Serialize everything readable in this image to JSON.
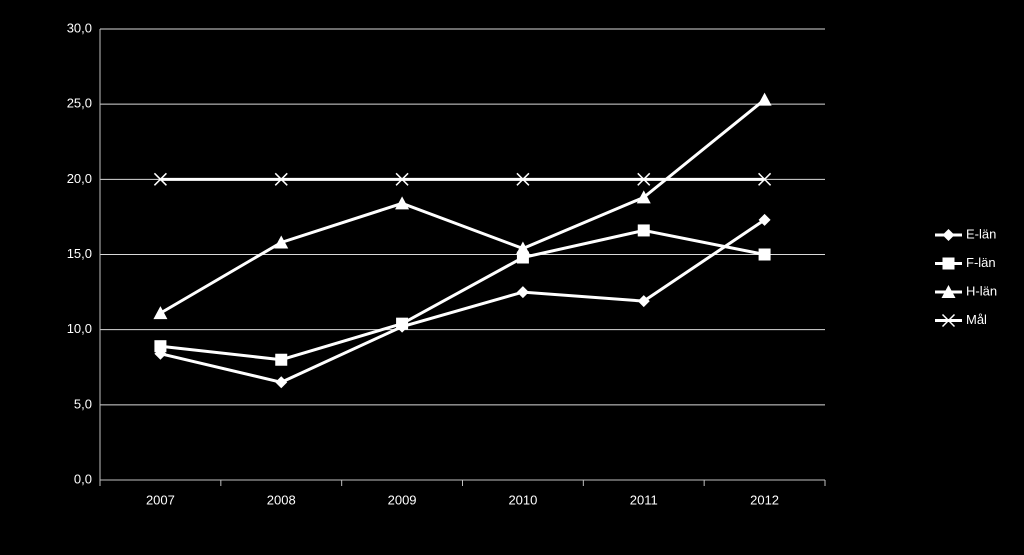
{
  "chart_data": {
    "type": "line",
    "categories": [
      "2007",
      "2008",
      "2009",
      "2010",
      "2011",
      "2012"
    ],
    "series": [
      {
        "name": "E-län",
        "color": "#ffffff",
        "marker": "diamond",
        "values": [
          8.4,
          6.5,
          10.2,
          12.5,
          11.9,
          17.3
        ]
      },
      {
        "name": "F-län",
        "color": "#ffffff",
        "marker": "square",
        "values": [
          8.9,
          8.0,
          10.4,
          14.8,
          16.6,
          15.0
        ]
      },
      {
        "name": "H-län",
        "color": "#ffffff",
        "marker": "triangle",
        "values": [
          11.1,
          15.8,
          18.4,
          15.4,
          18.8,
          25.3
        ]
      },
      {
        "name": "Mål",
        "color": "#ffffff",
        "marker": "x",
        "values": [
          20,
          20,
          20,
          20,
          20,
          20
        ]
      }
    ],
    "ylim": [
      0,
      30
    ],
    "yticks": [
      {
        "value": 0,
        "label": "0,0"
      },
      {
        "value": 5,
        "label": "5,0"
      },
      {
        "value": 10,
        "label": "10,0"
      },
      {
        "value": 15,
        "label": "15,0"
      },
      {
        "value": 20,
        "label": "20,0"
      },
      {
        "value": 25,
        "label": "25,0"
      },
      {
        "value": 30,
        "label": "30,0"
      }
    ],
    "grid": true,
    "legend": "right"
  }
}
